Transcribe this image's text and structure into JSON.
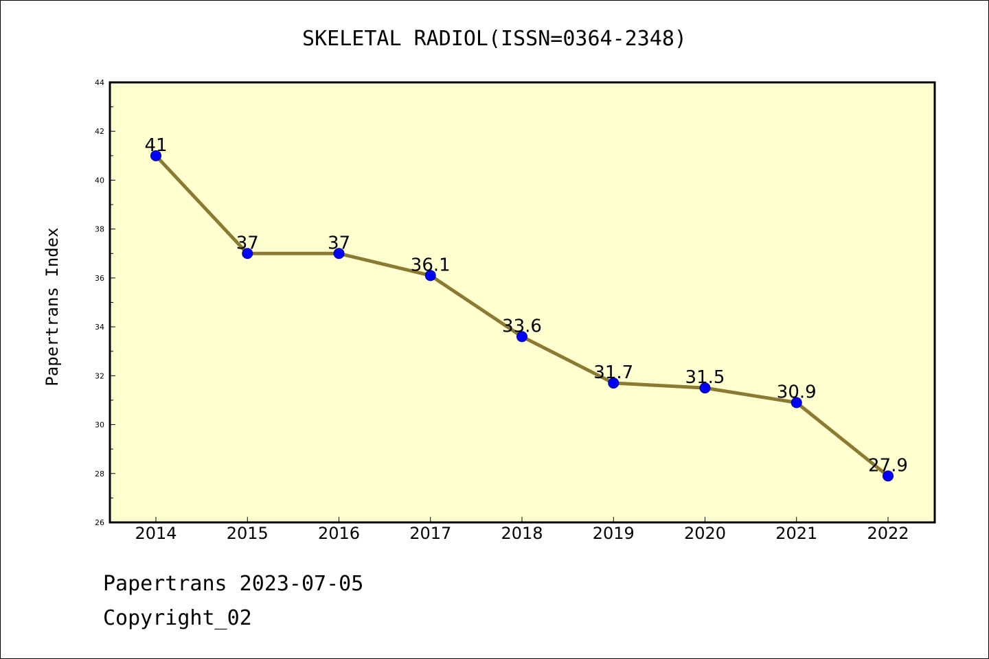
{
  "chart_data": {
    "type": "line",
    "title": "SKELETAL RADIOL(ISSN=0364-2348)",
    "xlabel": "",
    "ylabel": "Papertrans Index",
    "categories": [
      "2014",
      "2015",
      "2016",
      "2017",
      "2018",
      "2019",
      "2020",
      "2021",
      "2022"
    ],
    "series": [
      {
        "values": [
          41,
          37,
          37,
          36.1,
          33.6,
          31.7,
          31.5,
          30.9,
          27.9
        ]
      }
    ],
    "data_labels": [
      "41",
      "37",
      "37",
      "36.1",
      "33.6",
      "31.7",
      "31.5",
      "30.9",
      "27.9"
    ],
    "ylim": [
      26,
      44
    ],
    "yticks": [
      "26",
      "28",
      "30",
      "32",
      "34",
      "36",
      "38",
      "40",
      "42",
      "44"
    ],
    "grid": false,
    "legend": "none",
    "colors": {
      "plot_background": "#ffffd0",
      "line": "#8b7a32",
      "marker": "#0000ff",
      "marker_edge": "#00008b"
    }
  },
  "footer": {
    "line1": "Papertrans 2023-07-05",
    "line2": "Copyright_02"
  }
}
